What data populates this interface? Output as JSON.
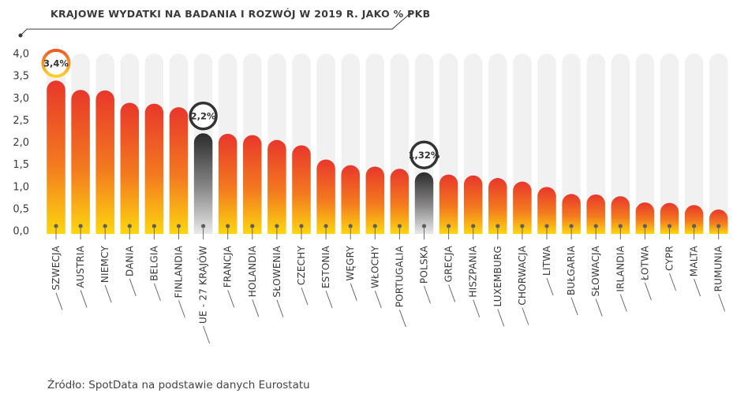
{
  "chart_data": {
    "type": "bar",
    "title": "KRAJOWE WYDATKI NA BADANIA I ROZWÓJ W 2019 R. JAKO % PKB",
    "categories": [
      "SZWECJA",
      "AUSTRIA",
      "NIEMCY",
      "DANIA",
      "BELGIA",
      "FINLANDIA",
      "UE - 27 KRAJÓW",
      "FRANCJA",
      "HOLANDIA",
      "SŁOWENIA",
      "CZECHY",
      "ESTONIA",
      "WĘGRY",
      "WŁOCHY",
      "PORTUGALIA",
      "POLSKA",
      "GRECJA",
      "HISZPANIA",
      "LUXEMBURG",
      "CHORWACJA",
      "LITWA",
      "BUŁGARIA",
      "SŁOWACJA",
      "IRLANDIA",
      "ŁOTWA",
      "CYPR",
      "MALTA",
      "RUMUNIA"
    ],
    "values": [
      3.39,
      3.18,
      3.17,
      2.89,
      2.87,
      2.79,
      2.2,
      2.19,
      2.16,
      2.05,
      1.93,
      1.61,
      1.48,
      1.45,
      1.4,
      1.32,
      1.27,
      1.25,
      1.19,
      1.11,
      0.99,
      0.83,
      0.82,
      0.78,
      0.64,
      0.63,
      0.58,
      0.48
    ],
    "ylim": [
      0,
      4.0
    ],
    "yticks": [
      "0,0",
      "0,5",
      "1,0",
      "1,5",
      "2,0",
      "2,5",
      "3,0",
      "3,5",
      "4,0"
    ],
    "highlighted": [
      "UE - 27 KRAJÓW",
      "POLSKA"
    ],
    "callouts": [
      {
        "category": "SZWECJA",
        "label": "3,4%"
      },
      {
        "category": "UE - 27 KRAJÓW",
        "label": "2,2%"
      },
      {
        "category": "POLSKA",
        "label": "1,32%"
      }
    ],
    "colors": {
      "bar_top": "#e8372b",
      "bar_mid": "#f37a1f",
      "bar_bottom": "#fdd60f",
      "highlight_top": "#2b2b2b",
      "highlight_bottom": "#e9e9e9",
      "track": "#f1f1f1",
      "callout_ring": "#f28a1c"
    },
    "grid": false,
    "legend": "none",
    "xlabel": "",
    "ylabel": ""
  },
  "source_note": "Źródło: SpotData na podstawie danych Eurostatu"
}
